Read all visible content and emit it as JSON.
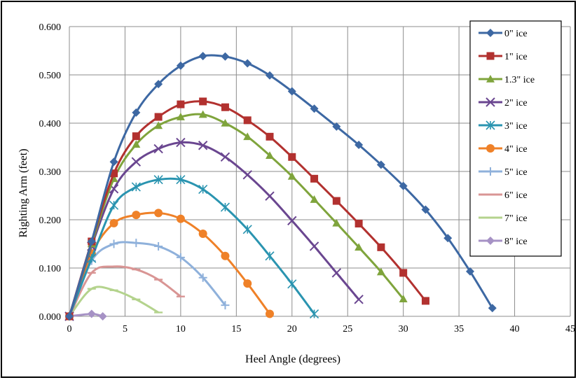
{
  "chart_data": {
    "type": "line",
    "title": "",
    "xlabel": "Heel Angle (degrees)",
    "ylabel": "Righting Arm (feet)",
    "xlim": [
      0,
      45
    ],
    "ylim": [
      0,
      0.6
    ],
    "xticks": [
      "0",
      "5",
      "10",
      "15",
      "20",
      "25",
      "30",
      "35",
      "40",
      "45"
    ],
    "yticks": [
      "0.000",
      "0.100",
      "0.200",
      "0.300",
      "0.400",
      "0.500",
      "0.600"
    ],
    "grid": true,
    "legend_position": "right",
    "series": [
      {
        "name": "0\" ice",
        "color": "#3d68a3",
        "marker": "diamond",
        "x": [
          0,
          2,
          4,
          6,
          8,
          10,
          12,
          14,
          16,
          18,
          20,
          22,
          24,
          26,
          28,
          30,
          32,
          34,
          36,
          38
        ],
        "y": [
          0,
          0.155,
          0.32,
          0.422,
          0.481,
          0.519,
          0.539,
          0.538,
          0.524,
          0.499,
          0.466,
          0.43,
          0.393,
          0.355,
          0.314,
          0.27,
          0.221,
          0.162,
          0.093,
          0.017
        ]
      },
      {
        "name": "1\" ice",
        "color": "#b2312f",
        "marker": "square",
        "x": [
          0,
          2,
          4,
          6,
          8,
          10,
          12,
          14,
          16,
          18,
          20,
          22,
          24,
          26,
          28,
          30,
          32
        ],
        "y": [
          0,
          0.155,
          0.296,
          0.373,
          0.413,
          0.439,
          0.445,
          0.433,
          0.406,
          0.372,
          0.33,
          0.285,
          0.239,
          0.192,
          0.143,
          0.09,
          0.032
        ]
      },
      {
        "name": "1.3\" ice",
        "color": "#7fa43c",
        "marker": "triangle",
        "x": [
          0,
          2,
          4,
          6,
          8,
          10,
          12,
          14,
          16,
          18,
          20,
          22,
          24,
          26,
          28,
          30
        ],
        "y": [
          0,
          0.15,
          0.285,
          0.356,
          0.395,
          0.413,
          0.418,
          0.4,
          0.372,
          0.333,
          0.29,
          0.242,
          0.193,
          0.143,
          0.092,
          0.036
        ]
      },
      {
        "name": "2\" ice",
        "color": "#6a4690",
        "marker": "x",
        "x": [
          0,
          2,
          4,
          6,
          8,
          10,
          12,
          14,
          16,
          18,
          20,
          22,
          24,
          26
        ],
        "y": [
          0,
          0.145,
          0.264,
          0.32,
          0.347,
          0.36,
          0.354,
          0.33,
          0.293,
          0.249,
          0.198,
          0.145,
          0.09,
          0.035
        ]
      },
      {
        "name": "3\" ice",
        "color": "#2a94b0",
        "marker": "star",
        "x": [
          0,
          2,
          4,
          6,
          8,
          10,
          12,
          14,
          16,
          18,
          20,
          22
        ],
        "y": [
          0,
          0.12,
          0.23,
          0.268,
          0.283,
          0.283,
          0.263,
          0.226,
          0.18,
          0.125,
          0.067,
          0.005
        ]
      },
      {
        "name": "4\" ice",
        "color": "#ef8128",
        "marker": "circle",
        "x": [
          0,
          2,
          4,
          6,
          8,
          10,
          12,
          14,
          16,
          18
        ],
        "y": [
          0,
          0.13,
          0.193,
          0.21,
          0.214,
          0.202,
          0.171,
          0.125,
          0.068,
          0.005
        ]
      },
      {
        "name": "5\" ice",
        "color": "#8fb1db",
        "marker": "plus",
        "x": [
          0,
          2,
          4,
          6,
          8,
          10,
          12,
          14
        ],
        "y": [
          0,
          0.115,
          0.15,
          0.152,
          0.145,
          0.122,
          0.08,
          0.023
        ]
      },
      {
        "name": "6\" ice",
        "color": "#d99594",
        "marker": "dash",
        "x": [
          0,
          2,
          4,
          6,
          8,
          10
        ],
        "y": [
          0,
          0.09,
          0.103,
          0.097,
          0.076,
          0.041
        ]
      },
      {
        "name": "7\" ice",
        "color": "#b4d38d",
        "marker": "dash",
        "x": [
          0,
          2,
          4,
          6,
          8
        ],
        "y": [
          0,
          0.057,
          0.054,
          0.035,
          0.008
        ]
      },
      {
        "name": "8\" ice",
        "color": "#a692c5",
        "marker": "diamond",
        "x": [
          0,
          2,
          3
        ],
        "y": [
          0,
          0.005,
          0.0
        ]
      }
    ]
  }
}
